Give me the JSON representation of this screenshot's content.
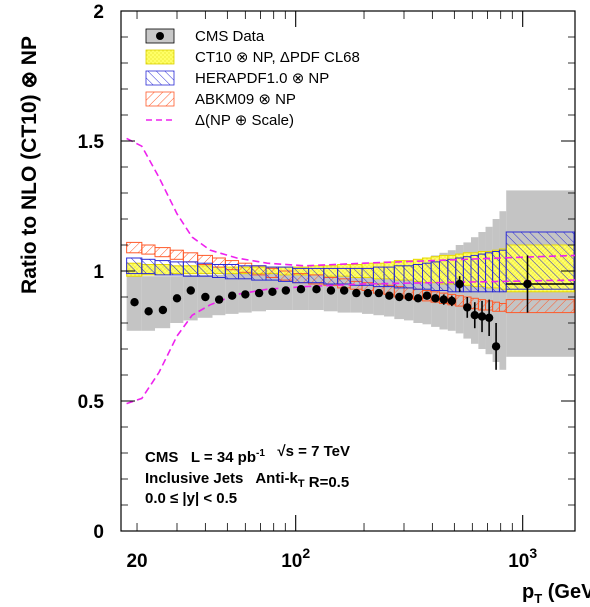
{
  "chart_data": {
    "type": "scatter",
    "xlabel": "p",
    "xlabel_sub": "T",
    "xlabel_unit": " (GeV)",
    "ylabel": "Ratio to NLO (CT10) ⊗ NP",
    "xscale": "log",
    "xlim": [
      17,
      1700
    ],
    "ylim": [
      0,
      2
    ],
    "x_ticks": [
      {
        "value": 20,
        "label": "20"
      },
      {
        "value": 100,
        "label": "10",
        "exp": "2"
      },
      {
        "value": 1000,
        "label": "10",
        "exp": "3"
      }
    ],
    "y_ticks": [
      {
        "value": 0,
        "label": "0"
      },
      {
        "value": 0.5,
        "label": "0.5"
      },
      {
        "value": 1,
        "label": "1"
      },
      {
        "value": 1.5,
        "label": "1.5"
      },
      {
        "value": 2,
        "label": "2"
      }
    ],
    "legend": [
      {
        "label": "CMS Data",
        "style": "data"
      },
      {
        "label": "CT10 ⊗ NP, ΔPDF CL68",
        "style": "yellow"
      },
      {
        "label": "HERAPDF1.0 ⊗ NP",
        "style": "blue"
      },
      {
        "label": "ABKM09 ⊗ NP",
        "style": "red"
      },
      {
        "label": "Δ(NP ⊕ Scale)",
        "style": "magenta"
      }
    ],
    "annotations": [
      {
        "parts": [
          {
            "t": "CMS   L = 34 pb"
          },
          {
            "t": "-1",
            "sup": true
          },
          {
            "t": "   √s = 7 TeV"
          }
        ]
      },
      {
        "parts": [
          {
            "t": "Inclusive Jets   Anti-k"
          },
          {
            "t": "T",
            "sub": true
          },
          {
            "t": " R=0.5"
          }
        ]
      },
      {
        "parts": [
          {
            "t": "0.0 ≤ |y| < 0.5"
          }
        ]
      }
    ],
    "bins": [
      18,
      21,
      24,
      28,
      32,
      37,
      43,
      49,
      56,
      64,
      74,
      84,
      97,
      114,
      133,
      153,
      174,
      196,
      220,
      245,
      272,
      300,
      330,
      362,
      395,
      430,
      468,
      507,
      548,
      592,
      638,
      686,
      737,
      790,
      846,
      1684
    ],
    "data_points": [
      {
        "x": 19.5,
        "y": 0.88,
        "err": 0.015
      },
      {
        "x": 22.5,
        "y": 0.845,
        "err": 0.012
      },
      {
        "x": 26,
        "y": 0.85,
        "err": 0.012
      },
      {
        "x": 30,
        "y": 0.895,
        "err": 0.01
      },
      {
        "x": 34.5,
        "y": 0.925,
        "err": 0.01
      },
      {
        "x": 40,
        "y": 0.9,
        "err": 0.01
      },
      {
        "x": 46,
        "y": 0.89,
        "err": 0.01
      },
      {
        "x": 52.5,
        "y": 0.905,
        "err": 0.01
      },
      {
        "x": 60,
        "y": 0.91,
        "err": 0.01
      },
      {
        "x": 69,
        "y": 0.915,
        "err": 0.01
      },
      {
        "x": 79,
        "y": 0.92,
        "err": 0.01
      },
      {
        "x": 90.5,
        "y": 0.925,
        "err": 0.01
      },
      {
        "x": 105.5,
        "y": 0.93,
        "err": 0.01
      },
      {
        "x": 123.5,
        "y": 0.93,
        "err": 0.01
      },
      {
        "x": 143,
        "y": 0.925,
        "err": 0.01
      },
      {
        "x": 163.5,
        "y": 0.925,
        "err": 0.01
      },
      {
        "x": 185,
        "y": 0.915,
        "err": 0.01
      },
      {
        "x": 208,
        "y": 0.915,
        "err": 0.01
      },
      {
        "x": 232.5,
        "y": 0.915,
        "err": 0.01
      },
      {
        "x": 258.5,
        "y": 0.905,
        "err": 0.012
      },
      {
        "x": 286,
        "y": 0.9,
        "err": 0.012
      },
      {
        "x": 315,
        "y": 0.9,
        "err": 0.012
      },
      {
        "x": 346,
        "y": 0.895,
        "err": 0.012
      },
      {
        "x": 378.5,
        "y": 0.905,
        "err": 0.015
      },
      {
        "x": 412.5,
        "y": 0.895,
        "err": 0.015
      },
      {
        "x": 449,
        "y": 0.89,
        "err": 0.02
      },
      {
        "x": 487.5,
        "y": 0.885,
        "err": 0.02
      },
      {
        "x": 527.5,
        "y": 0.95,
        "err": 0.03
      },
      {
        "x": 570,
        "y": 0.86,
        "err": 0.04
      },
      {
        "x": 615,
        "y": 0.83,
        "err": 0.05
      },
      {
        "x": 662,
        "y": 0.825,
        "err": 0.06
      },
      {
        "x": 711.5,
        "y": 0.82,
        "err": 0.07
      },
      {
        "x": 763.5,
        "y": 0.71,
        "err": 0.09
      },
      {
        "x": 1050,
        "y": 0.95,
        "err": 0.11,
        "xerr_low": 846,
        "xerr_high": 1684
      }
    ],
    "grey_band_low": [
      0.77,
      0.77,
      0.78,
      0.8,
      0.81,
      0.82,
      0.83,
      0.835,
      0.84,
      0.845,
      0.85,
      0.85,
      0.85,
      0.85,
      0.845,
      0.84,
      0.84,
      0.835,
      0.83,
      0.825,
      0.815,
      0.81,
      0.8,
      0.795,
      0.785,
      0.775,
      0.77,
      0.76,
      0.74,
      0.72,
      0.7,
      0.68,
      0.65,
      0.62,
      0.67
    ],
    "grey_band_high": [
      0.98,
      0.98,
      0.98,
      0.98,
      0.985,
      0.985,
      0.985,
      0.99,
      0.99,
      0.99,
      0.99,
      0.995,
      0.995,
      1.0,
      1.0,
      1.0,
      1.005,
      1.005,
      1.01,
      1.01,
      1.015,
      1.02,
      1.03,
      1.04,
      1.06,
      1.07,
      1.08,
      1.1,
      1.11,
      1.13,
      1.15,
      1.17,
      1.2,
      1.23,
      1.31
    ],
    "ct10_band": [
      [
        0.98,
        1.03
      ],
      [
        0.985,
        1.025
      ],
      [
        0.985,
        1.025
      ],
      [
        0.99,
        1.02
      ],
      [
        0.99,
        1.02
      ],
      [
        0.99,
        1.02
      ],
      [
        0.99,
        1.015
      ],
      [
        0.99,
        1.015
      ],
      [
        0.99,
        1.015
      ],
      [
        0.99,
        1.015
      ],
      [
        0.99,
        1.015
      ],
      [
        0.985,
        1.015
      ],
      [
        0.985,
        1.015
      ],
      [
        0.985,
        1.02
      ],
      [
        0.98,
        1.02
      ],
      [
        0.98,
        1.025
      ],
      [
        0.975,
        1.025
      ],
      [
        0.975,
        1.03
      ],
      [
        0.97,
        1.03
      ],
      [
        0.97,
        1.035
      ],
      [
        0.965,
        1.04
      ],
      [
        0.965,
        1.04
      ],
      [
        0.96,
        1.045
      ],
      [
        0.955,
        1.05
      ],
      [
        0.955,
        1.055
      ],
      [
        0.95,
        1.06
      ],
      [
        0.95,
        1.06
      ],
      [
        0.945,
        1.065
      ],
      [
        0.945,
        1.07
      ],
      [
        0.94,
        1.07
      ],
      [
        0.94,
        1.075
      ],
      [
        0.935,
        1.075
      ],
      [
        0.935,
        1.08
      ],
      [
        0.93,
        1.085
      ],
      [
        0.92,
        1.1
      ]
    ],
    "herapdf_band": [
      [
        0.99,
        1.05
      ],
      [
        0.99,
        1.045
      ],
      [
        0.985,
        1.04
      ],
      [
        0.985,
        1.035
      ],
      [
        0.98,
        1.035
      ],
      [
        0.98,
        1.03
      ],
      [
        0.975,
        1.025
      ],
      [
        0.97,
        1.025
      ],
      [
        0.97,
        1.02
      ],
      [
        0.965,
        1.02
      ],
      [
        0.965,
        1.015
      ],
      [
        0.96,
        1.015
      ],
      [
        0.955,
        1.01
      ],
      [
        0.955,
        1.01
      ],
      [
        0.95,
        1.01
      ],
      [
        0.95,
        1.01
      ],
      [
        0.945,
        1.01
      ],
      [
        0.945,
        1.01
      ],
      [
        0.94,
        1.015
      ],
      [
        0.94,
        1.015
      ],
      [
        0.935,
        1.02
      ],
      [
        0.935,
        1.02
      ],
      [
        0.93,
        1.025
      ],
      [
        0.93,
        1.03
      ],
      [
        0.925,
        1.035
      ],
      [
        0.925,
        1.04
      ],
      [
        0.92,
        1.045
      ],
      [
        0.92,
        1.05
      ],
      [
        0.92,
        1.055
      ],
      [
        0.92,
        1.06
      ],
      [
        0.92,
        1.065
      ],
      [
        0.92,
        1.07
      ],
      [
        0.92,
        1.075
      ],
      [
        0.92,
        1.08
      ],
      [
        0.93,
        1.15
      ]
    ],
    "abkm_band": [
      [
        1.07,
        1.11
      ],
      [
        1.065,
        1.1
      ],
      [
        1.055,
        1.09
      ],
      [
        1.045,
        1.08
      ],
      [
        1.035,
        1.07
      ],
      [
        1.025,
        1.06
      ],
      [
        1.015,
        1.05
      ],
      [
        1.005,
        1.04
      ],
      [
        0.995,
        1.03
      ],
      [
        0.985,
        1.02
      ],
      [
        0.975,
        1.01
      ],
      [
        0.965,
        1.0
      ],
      [
        0.955,
        0.99
      ],
      [
        0.95,
        0.985
      ],
      [
        0.945,
        0.975
      ],
      [
        0.935,
        0.97
      ],
      [
        0.93,
        0.96
      ],
      [
        0.925,
        0.955
      ],
      [
        0.915,
        0.95
      ],
      [
        0.91,
        0.945
      ],
      [
        0.9,
        0.94
      ],
      [
        0.895,
        0.935
      ],
      [
        0.89,
        0.93
      ],
      [
        0.885,
        0.925
      ],
      [
        0.88,
        0.92
      ],
      [
        0.875,
        0.915
      ],
      [
        0.87,
        0.91
      ],
      [
        0.865,
        0.905
      ],
      [
        0.86,
        0.9
      ],
      [
        0.855,
        0.895
      ],
      [
        0.85,
        0.89
      ],
      [
        0.85,
        0.885
      ],
      [
        0.845,
        0.88
      ],
      [
        0.845,
        0.875
      ],
      [
        0.84,
        0.89
      ]
    ],
    "scale_upper": [
      [
        18,
        1.51
      ],
      [
        21,
        1.48
      ],
      [
        25,
        1.36
      ],
      [
        30,
        1.22
      ],
      [
        35,
        1.13
      ],
      [
        42,
        1.08
      ],
      [
        55,
        1.05
      ],
      [
        75,
        1.03
      ],
      [
        110,
        1.02
      ],
      [
        200,
        1.03
      ],
      [
        400,
        1.04
      ],
      [
        800,
        1.05
      ],
      [
        1700,
        1.06
      ]
    ],
    "scale_lower": [
      [
        18,
        0.49
      ],
      [
        21,
        0.51
      ],
      [
        25,
        0.61
      ],
      [
        30,
        0.75
      ],
      [
        35,
        0.83
      ],
      [
        42,
        0.87
      ],
      [
        55,
        0.91
      ],
      [
        75,
        0.93
      ],
      [
        110,
        0.94
      ],
      [
        200,
        0.95
      ],
      [
        400,
        0.955
      ],
      [
        800,
        0.96
      ],
      [
        1700,
        0.965
      ]
    ]
  }
}
